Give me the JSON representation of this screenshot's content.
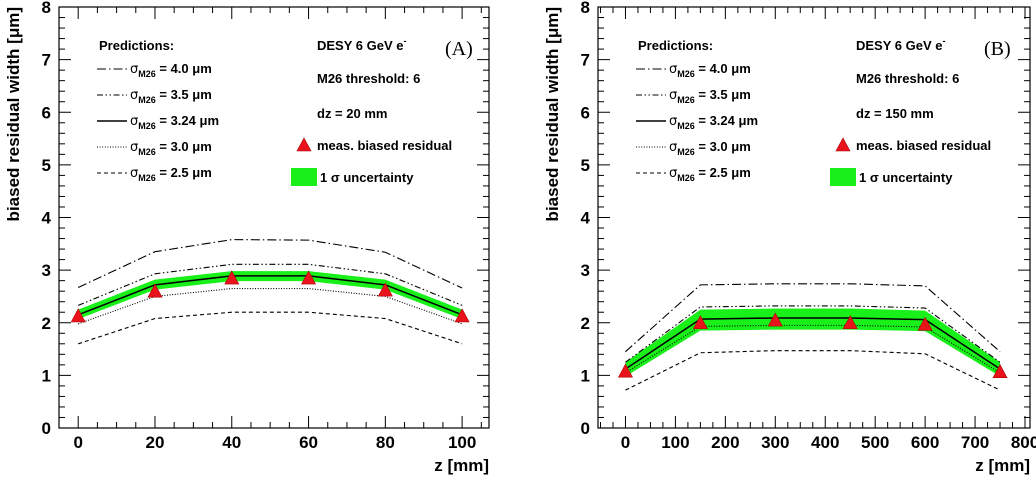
{
  "chart_data": [
    {
      "type": "line",
      "panel_label": "(A)",
      "xlabel": "z [mm]",
      "ylabel": "biased residual width [μm]",
      "xlim": [
        -5,
        107
      ],
      "ylim": [
        0,
        8
      ],
      "x_ticks": [
        0,
        20,
        40,
        60,
        80,
        100
      ],
      "y_ticks": [
        0,
        1,
        2,
        3,
        4,
        5,
        6,
        7,
        8
      ],
      "x": [
        0,
        20,
        40,
        60,
        80,
        100
      ],
      "legend_title": "Predictions:",
      "info_lines": [
        "DESY 6 GeV e",
        "M26 threshold: 6",
        "dz = 20 mm"
      ],
      "series": [
        {
          "name": "σ_M26 = 4.0 μm",
          "style": "dashdot",
          "values": [
            2.67,
            3.35,
            3.58,
            3.57,
            3.34,
            2.66
          ]
        },
        {
          "name": "σ_M26 = 3.5 μm",
          "style": "dashdotdot",
          "values": [
            2.33,
            2.93,
            3.11,
            3.11,
            2.93,
            2.33
          ]
        },
        {
          "name": "σ_M26 = 3.24 μm",
          "style": "solid",
          "values": [
            2.15,
            2.72,
            2.89,
            2.89,
            2.72,
            2.15
          ]
        },
        {
          "name": "σ_M26 = 3.0 μm",
          "style": "dotted",
          "values": [
            1.98,
            2.5,
            2.65,
            2.65,
            2.5,
            1.98
          ]
        },
        {
          "name": "σ_M26 = 2.5 μm",
          "style": "dashed",
          "values": [
            1.6,
            2.08,
            2.2,
            2.2,
            2.08,
            1.6
          ]
        }
      ],
      "band": {
        "name": "1 σ uncertainty",
        "lower": [
          2.07,
          2.63,
          2.79,
          2.79,
          2.63,
          2.07
        ],
        "upper": [
          2.25,
          2.82,
          2.98,
          2.98,
          2.82,
          2.25
        ]
      },
      "measurements": {
        "name": "meas. biased residual",
        "values": [
          2.13,
          2.6,
          2.85,
          2.85,
          2.62,
          2.13
        ]
      }
    },
    {
      "type": "line",
      "panel_label": "(B)",
      "xlabel": "z [mm]",
      "ylabel": "biased residual width [μm]",
      "xlim": [
        -55,
        810
      ],
      "ylim": [
        0,
        8
      ],
      "x_ticks": [
        0,
        100,
        200,
        300,
        400,
        500,
        600,
        700,
        800
      ],
      "y_ticks": [
        0,
        1,
        2,
        3,
        4,
        5,
        6,
        7,
        8
      ],
      "x": [
        0,
        150,
        300,
        450,
        600,
        750
      ],
      "legend_title": "Predictions:",
      "info_lines": [
        "DESY 6 GeV e",
        "M26 threshold: 6",
        "dz = 150 mm"
      ],
      "series": [
        {
          "name": "σ_M26 = 4.0 μm",
          "style": "dashdot",
          "values": [
            1.45,
            2.72,
            2.74,
            2.74,
            2.7,
            1.45
          ]
        },
        {
          "name": "σ_M26 = 3.5 μm",
          "style": "dashdotdot",
          "values": [
            1.25,
            2.3,
            2.32,
            2.32,
            2.28,
            1.25
          ]
        },
        {
          "name": "σ_M26 = 3.24 μm",
          "style": "solid",
          "values": [
            1.12,
            2.07,
            2.09,
            2.09,
            2.06,
            1.12
          ]
        },
        {
          "name": "σ_M26 = 3.0 μm",
          "style": "dotted",
          "values": [
            1.05,
            1.93,
            1.95,
            1.95,
            1.92,
            1.05
          ]
        },
        {
          "name": "σ_M26 = 2.5 μm",
          "style": "dashed",
          "values": [
            0.72,
            1.43,
            1.47,
            1.47,
            1.41,
            0.72
          ]
        }
      ],
      "band": {
        "name": "1 σ uncertainty",
        "lower": [
          0.98,
          1.85,
          1.87,
          1.87,
          1.84,
          0.98
        ],
        "upper": [
          1.25,
          2.25,
          2.27,
          2.27,
          2.23,
          1.25
        ]
      },
      "measurements": {
        "name": "meas. biased residual",
        "values": [
          1.08,
          2.0,
          2.05,
          2.0,
          1.97,
          1.07
        ]
      }
    }
  ]
}
